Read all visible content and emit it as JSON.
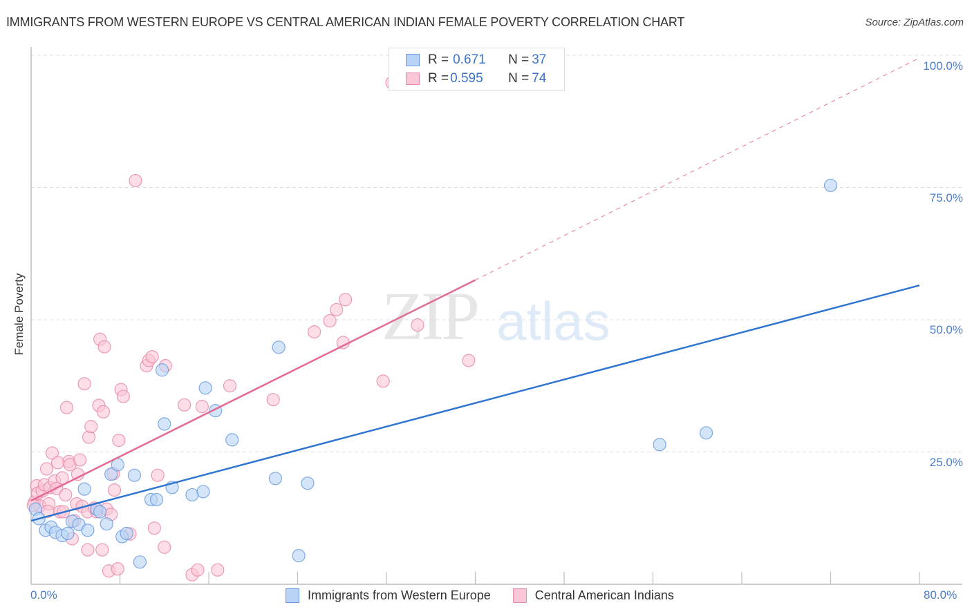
{
  "header": {
    "title": "IMMIGRANTS FROM WESTERN EUROPE VS CENTRAL AMERICAN INDIAN FEMALE POVERTY CORRELATION CHART",
    "source": "Source: ZipAtlas.com"
  },
  "watermark": {
    "zip": "ZIP",
    "atlas": "atlas"
  },
  "legend_top": {
    "rows": [
      {
        "r_label": "R = ",
        "r_value": "0.671",
        "n_label": "N = ",
        "n_value": "37",
        "color": "#b8d3f5"
      },
      {
        "r_label": "R = ",
        "r_value": "0.595",
        "n_label": "N = ",
        "n_value": "74",
        "color": "#fbc6d6"
      }
    ]
  },
  "legend_bottom": {
    "items": [
      {
        "label": "Immigrants from Western Europe",
        "color": "#b8d3f5"
      },
      {
        "label": "Central American Indians",
        "color": "#fbc6d6"
      }
    ]
  },
  "axes": {
    "ylabel": "Female Poverty",
    "y_ticks": [
      "100.0%",
      "75.0%",
      "50.0%",
      "25.0%"
    ],
    "x_left": "0.0%",
    "x_right": "80.0%"
  },
  "chart_data": {
    "type": "scatter",
    "title": "IMMIGRANTS FROM WESTERN EUROPE VS CENTRAL AMERICAN INDIAN FEMALE POVERTY CORRELATION CHART",
    "xlabel": "",
    "ylabel": "Female Poverty",
    "xlim": [
      0,
      80
    ],
    "ylim": [
      0,
      100
    ],
    "x_ticks": [
      "0.0%",
      "80.0%"
    ],
    "y_ticks": [
      "25.0%",
      "50.0%",
      "75.0%",
      "100.0%"
    ],
    "grid": true,
    "legend_position": "bottom",
    "series": [
      {
        "name": "Immigrants from Western Europe",
        "color": "#6a9be0",
        "fill": "#b8d3f5",
        "R": 0.671,
        "N": 37,
        "trend": {
          "x0": 0,
          "y0": 12.0,
          "x1": 80,
          "y1": 56.5
        },
        "points": [
          [
            0.4,
            14.2
          ],
          [
            0.7,
            12.4
          ],
          [
            1.3,
            10.2
          ],
          [
            1.8,
            10.8
          ],
          [
            2.2,
            9.8
          ],
          [
            2.8,
            9.2
          ],
          [
            3.3,
            9.6
          ],
          [
            3.7,
            11.9
          ],
          [
            4.3,
            11.3
          ],
          [
            4.8,
            18.0
          ],
          [
            5.1,
            10.2
          ],
          [
            5.9,
            14.2
          ],
          [
            6.2,
            13.7
          ],
          [
            6.8,
            11.4
          ],
          [
            7.2,
            20.8
          ],
          [
            7.8,
            22.6
          ],
          [
            8.2,
            9.0
          ],
          [
            8.6,
            9.6
          ],
          [
            9.3,
            20.6
          ],
          [
            9.8,
            4.2
          ],
          [
            10.8,
            16.0
          ],
          [
            11.3,
            16.0
          ],
          [
            11.8,
            40.5
          ],
          [
            12.0,
            30.3
          ],
          [
            12.7,
            18.3
          ],
          [
            14.5,
            16.9
          ],
          [
            15.5,
            17.5
          ],
          [
            15.7,
            37.1
          ],
          [
            16.6,
            32.8
          ],
          [
            18.1,
            27.3
          ],
          [
            22.0,
            20.0
          ],
          [
            22.3,
            44.8
          ],
          [
            24.1,
            5.4
          ],
          [
            24.9,
            19.1
          ],
          [
            56.6,
            26.4
          ],
          [
            60.8,
            28.6
          ],
          [
            72.0,
            75.4
          ]
        ]
      },
      {
        "name": "Central American Indians",
        "color": "#e88aaa",
        "fill": "#fbc6d6",
        "R": 0.595,
        "N": 74,
        "trend": {
          "x0": 0,
          "y0": 15.8,
          "x1": 40,
          "y1": 57.5,
          "dashed_to": {
            "x": 80,
            "y": 99.5
          }
        },
        "points": [
          [
            0.3,
            15.5
          ],
          [
            0.5,
            18.6
          ],
          [
            0.6,
            17.2
          ],
          [
            0.8,
            14.8
          ],
          [
            1.0,
            17.6
          ],
          [
            1.2,
            18.8
          ],
          [
            1.4,
            21.8
          ],
          [
            1.6,
            15.2
          ],
          [
            1.7,
            18.3
          ],
          [
            1.9,
            24.8
          ],
          [
            2.1,
            19.5
          ],
          [
            2.3,
            18.1
          ],
          [
            2.6,
            13.7
          ],
          [
            2.8,
            20.1
          ],
          [
            2.9,
            13.7
          ],
          [
            3.1,
            16.9
          ],
          [
            3.2,
            33.4
          ],
          [
            3.4,
            23.2
          ],
          [
            3.5,
            22.6
          ],
          [
            3.7,
            8.6
          ],
          [
            3.9,
            12.0
          ],
          [
            4.1,
            15.2
          ],
          [
            4.2,
            20.8
          ],
          [
            4.4,
            23.5
          ],
          [
            4.6,
            14.7
          ],
          [
            4.8,
            37.9
          ],
          [
            5.1,
            13.7
          ],
          [
            5.1,
            6.5
          ],
          [
            5.2,
            27.8
          ],
          [
            5.4,
            29.8
          ],
          [
            5.7,
            14.4
          ],
          [
            5.9,
            13.7
          ],
          [
            6.1,
            33.8
          ],
          [
            6.2,
            46.3
          ],
          [
            6.4,
            6.5
          ],
          [
            6.5,
            32.6
          ],
          [
            6.6,
            44.9
          ],
          [
            6.8,
            14.2
          ],
          [
            7.0,
            2.5
          ],
          [
            7.2,
            13.2
          ],
          [
            7.4,
            20.9
          ],
          [
            7.5,
            17.8
          ],
          [
            7.8,
            2.9
          ],
          [
            7.9,
            27.2
          ],
          [
            8.1,
            36.8
          ],
          [
            8.3,
            35.5
          ],
          [
            8.9,
            9.5
          ],
          [
            9.4,
            76.3
          ],
          [
            10.4,
            41.3
          ],
          [
            10.6,
            42.3
          ],
          [
            10.9,
            43.0
          ],
          [
            11.1,
            10.6
          ],
          [
            11.4,
            20.6
          ],
          [
            12.0,
            7.0
          ],
          [
            12.1,
            41.3
          ],
          [
            13.8,
            33.9
          ],
          [
            14.5,
            1.8
          ],
          [
            15.0,
            2.7
          ],
          [
            15.4,
            33.6
          ],
          [
            16.8,
            2.7
          ],
          [
            17.9,
            37.5
          ],
          [
            21.8,
            34.9
          ],
          [
            25.5,
            47.7
          ],
          [
            26.9,
            49.8
          ],
          [
            27.5,
            51.9
          ],
          [
            28.1,
            45.7
          ],
          [
            28.3,
            53.8
          ],
          [
            31.7,
            38.4
          ],
          [
            32.5,
            94.8
          ],
          [
            34.8,
            49.0
          ],
          [
            39.4,
            42.3
          ],
          [
            0.2,
            14.9
          ],
          [
            1.5,
            13.8
          ],
          [
            2.4,
            23.0
          ]
        ]
      }
    ]
  }
}
